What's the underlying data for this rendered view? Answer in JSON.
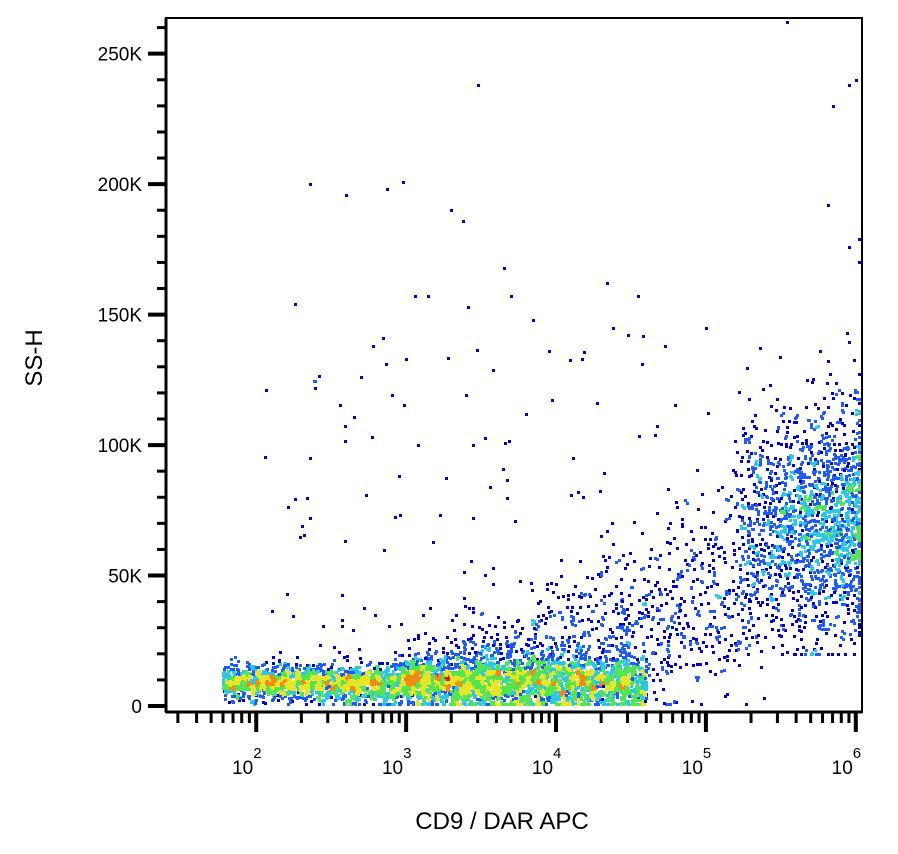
{
  "chart_data": {
    "type": "scatter",
    "subtype": "flow-cytometry-density-dot-plot",
    "xlabel": "CD9 / DAR APC",
    "ylabel": "SS-H",
    "x_scale": "log",
    "xlim": [
      25,
      1100000
    ],
    "ylim": [
      0,
      262144
    ],
    "x_ticks_major": [
      {
        "value": 100,
        "base": "10",
        "exp": "2"
      },
      {
        "value": 1000,
        "base": "10",
        "exp": "3"
      },
      {
        "value": 10000,
        "base": "10",
        "exp": "4"
      },
      {
        "value": 100000,
        "base": "10",
        "exp": "5"
      },
      {
        "value": 1000000,
        "base": "10",
        "exp": "6"
      }
    ],
    "y_ticks": [
      {
        "value": 0,
        "label": "0"
      },
      {
        "value": 50000,
        "label": "50K"
      },
      {
        "value": 100000,
        "label": "100K"
      },
      {
        "value": 150000,
        "label": "150K"
      },
      {
        "value": 200000,
        "label": "200K"
      },
      {
        "value": 250000,
        "label": "250K"
      }
    ],
    "density_colors": [
      "#0000c8",
      "#1e5aff",
      "#28c8e6",
      "#50e650",
      "#e6e628",
      "#f08c14",
      "#e61414"
    ],
    "populations": [
      {
        "description": "main CD9-low population",
        "x_range": [
          60,
          40000
        ],
        "y_center": 9000,
        "y_spread": 4500,
        "density": "high",
        "peak_x": [
          300,
          5000
        ]
      },
      {
        "description": "CD9-high population",
        "x_range": [
          150000,
          1100000
        ],
        "y_center": 70000,
        "y_spread": 22000,
        "density": "medium"
      }
    ],
    "sample_points": [
      [
        350000,
        262000
      ],
      [
        3000,
        238000
      ],
      [
        1000000,
        240000
      ],
      [
        900000,
        238000
      ],
      [
        700000,
        230000
      ],
      [
        230,
        200000
      ],
      [
        950,
        201000
      ],
      [
        750,
        198000
      ],
      [
        400,
        196000
      ],
      [
        2000,
        190000
      ],
      [
        2400,
        186000
      ],
      [
        1100000,
        179000
      ],
      [
        650000,
        192000
      ],
      [
        900000,
        176000
      ],
      [
        1100000,
        170000
      ],
      [
        180,
        154000
      ],
      [
        4500,
        168000
      ],
      [
        22000,
        162000
      ],
      [
        35000,
        157000
      ],
      [
        1150,
        157000
      ],
      [
        1400,
        157000
      ],
      [
        5000,
        157000
      ],
      [
        2600,
        153000
      ],
      [
        7000,
        148000
      ],
      [
        600,
        138000
      ],
      [
        500,
        126000
      ],
      [
        30000,
        142000
      ],
      [
        700,
        141000
      ],
      [
        9000,
        136000
      ],
      [
        230,
        95000
      ],
      [
        230,
        72000
      ],
      [
        20000,
        65000
      ],
      [
        1500,
        63000
      ],
      [
        2800,
        100000
      ],
      [
        1200,
        100000
      ],
      [
        15000,
        133000
      ],
      [
        800,
        119000
      ]
    ]
  }
}
